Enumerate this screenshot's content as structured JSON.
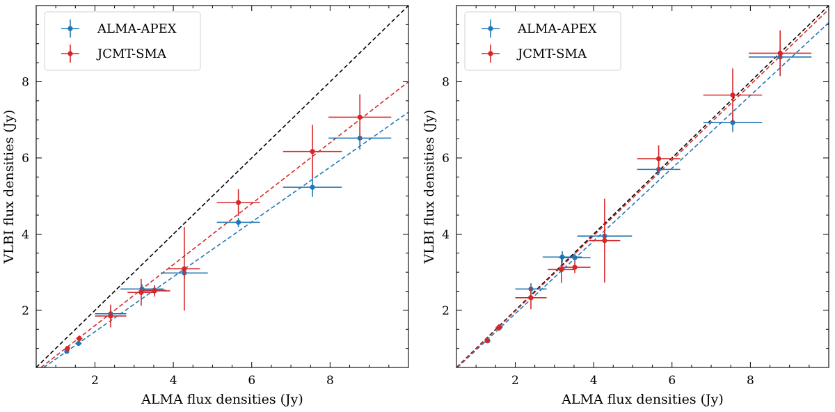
{
  "chart_data": [
    {
      "type": "scatter",
      "panel": "left",
      "xlabel": "ALMA flux densities (Jy)",
      "ylabel": "VLBI flux densities (Jy)",
      "xlim": [
        0.5,
        10.0
      ],
      "ylim": [
        0.5,
        10.0
      ],
      "xticks": [
        2,
        4,
        6,
        8
      ],
      "yticks": [
        2,
        4,
        6,
        8
      ],
      "xtick_labels": [
        "2",
        "4",
        "6",
        "8"
      ],
      "ytick_labels": [
        "2",
        "4",
        "6",
        "8"
      ],
      "legend_position": "top-left",
      "reference_line": {
        "style": "dashed",
        "color": "#000000",
        "slope": 1.0,
        "intercept": 0.0
      },
      "series": [
        {
          "name": "ALMA-APEX",
          "color": "#1f77b4",
          "fit": {
            "slope": 0.72,
            "intercept": 0.0
          },
          "points": [
            {
              "x": 1.28,
              "y": 0.92,
              "xerr": 0.06,
              "yerr": 0.05
            },
            {
              "x": 1.58,
              "y": 1.13,
              "xerr": 0.08,
              "yerr": 0.05
            },
            {
              "x": 2.4,
              "y": 1.91,
              "xerr": 0.4,
              "yerr": 0.1
            },
            {
              "x": 3.2,
              "y": 2.56,
              "xerr": 0.55,
              "yerr": 0.12
            },
            {
              "x": 3.52,
              "y": 2.53,
              "xerr": 0.3,
              "yerr": 0.1
            },
            {
              "x": 4.28,
              "y": 2.98,
              "xerr": 0.6,
              "yerr": 0.15
            },
            {
              "x": 5.66,
              "y": 4.31,
              "xerr": 0.55,
              "yerr": 0.12
            },
            {
              "x": 7.55,
              "y": 5.23,
              "xerr": 0.75,
              "yerr": 0.25
            },
            {
              "x": 8.76,
              "y": 6.52,
              "xerr": 0.8,
              "yerr": 0.3
            }
          ]
        },
        {
          "name": "JCMT-SMA",
          "color": "#d62728",
          "fit": {
            "slope": 0.8,
            "intercept": 0.0
          },
          "points": [
            {
              "x": 1.3,
              "y": 1.0,
              "xerr": 0.06,
              "yerr": 0.06
            },
            {
              "x": 1.6,
              "y": 1.26,
              "xerr": 0.08,
              "yerr": 0.08
            },
            {
              "x": 2.4,
              "y": 1.85,
              "xerr": 0.4,
              "yerr": 0.3
            },
            {
              "x": 3.18,
              "y": 2.47,
              "xerr": 0.35,
              "yerr": 0.35
            },
            {
              "x": 3.52,
              "y": 2.51,
              "xerr": 0.4,
              "yerr": 0.15
            },
            {
              "x": 4.28,
              "y": 3.09,
              "xerr": 0.4,
              "yerr": 1.1
            },
            {
              "x": 5.66,
              "y": 4.83,
              "xerr": 0.55,
              "yerr": 0.35
            },
            {
              "x": 7.55,
              "y": 6.17,
              "xerr": 0.75,
              "yerr": 0.7
            },
            {
              "x": 8.76,
              "y": 7.07,
              "xerr": 0.8,
              "yerr": 0.6
            }
          ]
        }
      ]
    },
    {
      "type": "scatter",
      "panel": "right",
      "xlabel": "ALMA flux densities (Jy)",
      "ylabel": "VLBI flux densities (Jy)",
      "xlim": [
        0.5,
        10.0
      ],
      "ylim": [
        0.5,
        10.0
      ],
      "xticks": [
        2,
        4,
        6,
        8
      ],
      "yticks": [
        2,
        4,
        6,
        8
      ],
      "xtick_labels": [
        "2",
        "4",
        "6",
        "8"
      ],
      "ytick_labels": [
        "2",
        "4",
        "6",
        "8"
      ],
      "legend_position": "top-left",
      "reference_line": {
        "style": "dashed",
        "color": "#000000",
        "slope": 1.0,
        "intercept": 0.0
      },
      "series": [
        {
          "name": "ALMA-APEX",
          "color": "#1f77b4",
          "fit": {
            "slope": 0.955,
            "intercept": 0.0
          },
          "points": [
            {
              "x": 1.3,
              "y": 1.2,
              "xerr": 0.06,
              "yerr": 0.06
            },
            {
              "x": 1.6,
              "y": 1.55,
              "xerr": 0.08,
              "yerr": 0.08
            },
            {
              "x": 2.4,
              "y": 2.56,
              "xerr": 0.4,
              "yerr": 0.15
            },
            {
              "x": 3.2,
              "y": 3.4,
              "xerr": 0.5,
              "yerr": 0.15
            },
            {
              "x": 3.52,
              "y": 3.38,
              "xerr": 0.4,
              "yerr": 0.12
            },
            {
              "x": 4.28,
              "y": 3.95,
              "xerr": 0.7,
              "yerr": 0.15
            },
            {
              "x": 5.66,
              "y": 5.7,
              "xerr": 0.55,
              "yerr": 0.15
            },
            {
              "x": 7.55,
              "y": 6.93,
              "xerr": 0.75,
              "yerr": 0.25
            },
            {
              "x": 8.76,
              "y": 8.65,
              "xerr": 0.8,
              "yerr": 0.3
            }
          ]
        },
        {
          "name": "JCMT-SMA",
          "color": "#d62728",
          "fit": {
            "slope": 0.99,
            "intercept": 0.0
          },
          "points": [
            {
              "x": 1.28,
              "y": 1.2,
              "xerr": 0.06,
              "yerr": 0.06
            },
            {
              "x": 1.58,
              "y": 1.55,
              "xerr": 0.08,
              "yerr": 0.08
            },
            {
              "x": 2.4,
              "y": 2.33,
              "xerr": 0.4,
              "yerr": 0.3
            },
            {
              "x": 3.18,
              "y": 3.07,
              "xerr": 0.35,
              "yerr": 0.35
            },
            {
              "x": 3.52,
              "y": 3.13,
              "xerr": 0.4,
              "yerr": 0.15
            },
            {
              "x": 4.28,
              "y": 3.83,
              "xerr": 0.4,
              "yerr": 1.1
            },
            {
              "x": 5.66,
              "y": 5.98,
              "xerr": 0.55,
              "yerr": 0.35
            },
            {
              "x": 7.55,
              "y": 7.65,
              "xerr": 0.75,
              "yerr": 0.7
            },
            {
              "x": 8.76,
              "y": 8.75,
              "xerr": 0.8,
              "yerr": 0.6
            }
          ]
        }
      ]
    }
  ]
}
